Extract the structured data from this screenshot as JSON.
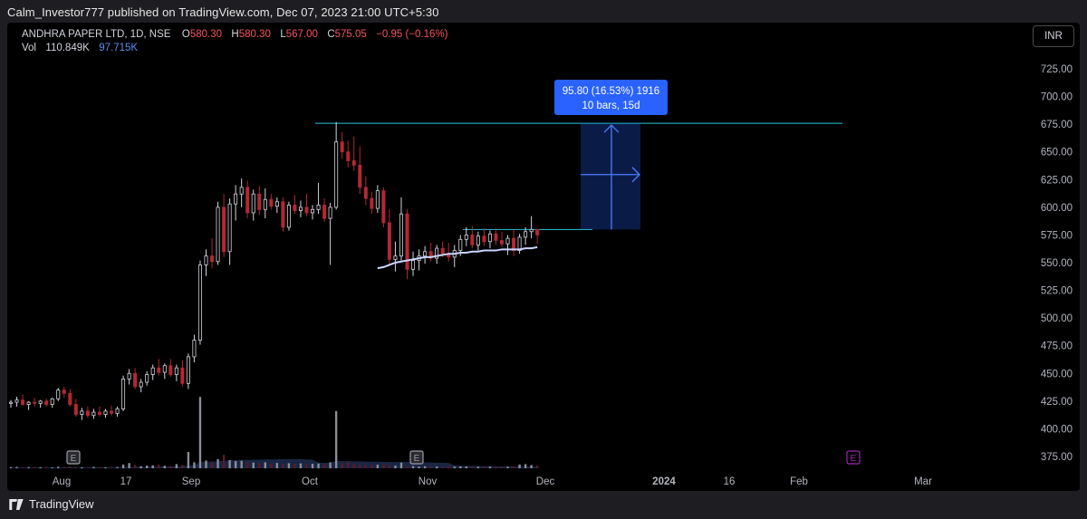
{
  "publisher": "Calm_Investor777 published on TradingView.com, Dec 07, 2023 21:00 UTC+5:30",
  "header": {
    "symbol": "ANDHRA PAPER LTD, 1D, NSE",
    "o_label": "O",
    "o_value": "580.30",
    "h_label": "H",
    "h_value": "580.30",
    "l_label": "L",
    "l_value": "567.00",
    "c_label": "C",
    "c_value": "575.05",
    "change": "−0.95 (−0.16%)",
    "vol_label": "Vol",
    "vol_value": "110.849K",
    "vol_ma": "97.715K"
  },
  "currency_button": "INR",
  "measure": {
    "line1": "95.80 (16.53%) 1916",
    "line2": "10 bars, 15d",
    "from_price": 580,
    "to_price": 675.8
  },
  "colors": {
    "up": "#d1d4dc",
    "down": "#b22833",
    "ma": "#c9d6ff",
    "hline": "#26c6da",
    "measure_bg": "#2962ff",
    "earnings": "#9c27b0",
    "volume_ma_fill": "#1c2a4a"
  },
  "footer_brand": "TradingView",
  "earnings_marker": "E",
  "chart_data": {
    "type": "candlestick",
    "ylim": [
      362,
      744
    ],
    "y_ticks": [
      "725.00",
      "700.00",
      "675.00",
      "650.00",
      "625.00",
      "600.00",
      "575.00",
      "550.00",
      "525.00",
      "500.00",
      "475.00",
      "450.00",
      "425.00",
      "400.00",
      "375.00"
    ],
    "x_ticks": [
      "Aug",
      "17",
      "Sep",
      "Oct",
      "Nov",
      "Dec",
      "2024",
      "16",
      "Feb",
      "Mar"
    ],
    "hlines": [
      675.8,
      580
    ],
    "candles": [
      [
        423,
        426,
        419,
        424
      ],
      [
        424,
        429,
        420,
        426
      ],
      [
        426,
        431,
        421,
        422
      ],
      [
        422,
        425,
        417,
        424
      ],
      [
        424,
        428,
        420,
        423
      ],
      [
        423,
        426,
        419,
        425
      ],
      [
        425,
        427,
        420,
        422
      ],
      [
        422,
        428,
        419,
        427
      ],
      [
        427,
        437,
        425,
        435
      ],
      [
        435,
        438,
        428,
        432
      ],
      [
        432,
        436,
        420,
        422
      ],
      [
        422,
        427,
        411,
        413
      ],
      [
        413,
        419,
        408,
        416
      ],
      [
        416,
        420,
        410,
        412
      ],
      [
        412,
        418,
        409,
        415
      ],
      [
        415,
        420,
        411,
        413
      ],
      [
        413,
        418,
        410,
        416
      ],
      [
        416,
        421,
        412,
        414
      ],
      [
        414,
        420,
        411,
        418
      ],
      [
        418,
        448,
        416,
        445
      ],
      [
        445,
        454,
        440,
        450
      ],
      [
        450,
        455,
        436,
        438
      ],
      [
        438,
        445,
        433,
        442
      ],
      [
        442,
        452,
        439,
        449
      ],
      [
        449,
        458,
        444,
        455
      ],
      [
        455,
        463,
        448,
        451
      ],
      [
        451,
        459,
        445,
        457
      ],
      [
        457,
        463,
        447,
        449
      ],
      [
        449,
        458,
        443,
        455
      ],
      [
        455,
        462,
        438,
        441
      ],
      [
        441,
        468,
        436,
        465
      ],
      [
        465,
        485,
        460,
        480
      ],
      [
        480,
        552,
        476,
        548
      ],
      [
        548,
        562,
        538,
        556
      ],
      [
        556,
        572,
        545,
        551
      ],
      [
        551,
        605,
        548,
        600
      ],
      [
        600,
        612,
        555,
        560
      ],
      [
        560,
        608,
        548,
        603
      ],
      [
        603,
        620,
        588,
        612
      ],
      [
        612,
        626,
        600,
        618
      ],
      [
        618,
        624,
        590,
        595
      ],
      [
        595,
        616,
        588,
        612
      ],
      [
        612,
        619,
        593,
        598
      ],
      [
        598,
        617,
        590,
        607
      ],
      [
        607,
        612,
        598,
        601
      ],
      [
        601,
        609,
        595,
        605
      ],
      [
        605,
        609,
        578,
        582
      ],
      [
        582,
        605,
        579,
        602
      ],
      [
        602,
        611,
        594,
        597
      ],
      [
        597,
        606,
        591,
        600
      ],
      [
        600,
        612,
        592,
        595
      ],
      [
        595,
        602,
        589,
        598
      ],
      [
        598,
        622,
        594,
        602
      ],
      [
        602,
        608,
        587,
        590
      ],
      [
        590,
        604,
        548,
        600
      ],
      [
        600,
        677,
        598,
        659
      ],
      [
        659,
        668,
        644,
        650
      ],
      [
        650,
        660,
        636,
        642
      ],
      [
        642,
        664,
        633,
        638
      ],
      [
        638,
        655,
        612,
        618
      ],
      [
        618,
        628,
        602,
        608
      ],
      [
        608,
        614,
        594,
        599
      ],
      [
        599,
        620,
        595,
        615
      ],
      [
        615,
        618,
        582,
        586
      ],
      [
        586,
        598,
        548,
        553
      ],
      [
        553,
        569,
        542,
        556
      ],
      [
        556,
        609,
        552,
        594
      ],
      [
        594,
        598,
        535,
        544
      ],
      [
        544,
        560,
        538,
        552
      ],
      [
        552,
        562,
        543,
        556
      ],
      [
        556,
        565,
        549,
        560
      ],
      [
        560,
        568,
        551,
        554
      ],
      [
        554,
        566,
        549,
        563
      ],
      [
        563,
        569,
        555,
        558
      ],
      [
        558,
        568,
        551,
        555
      ],
      [
        555,
        566,
        546,
        561
      ],
      [
        561,
        575,
        556,
        571
      ],
      [
        571,
        582,
        565,
        575
      ],
      [
        575,
        583,
        563,
        566
      ],
      [
        566,
        578,
        561,
        574
      ],
      [
        574,
        581,
        565,
        569
      ],
      [
        569,
        579,
        563,
        576
      ],
      [
        576,
        581,
        566,
        570
      ],
      [
        570,
        578,
        564,
        567
      ],
      [
        567,
        575,
        557,
        572
      ],
      [
        572,
        580,
        556,
        561
      ],
      [
        561,
        576,
        558,
        573
      ],
      [
        573,
        582,
        566,
        578
      ],
      [
        578,
        592,
        572,
        580
      ],
      [
        580,
        580,
        567,
        575
      ]
    ],
    "volume": [
      8,
      9,
      7,
      8,
      9,
      7,
      8,
      6,
      10,
      9,
      12,
      8,
      7,
      6,
      9,
      8,
      7,
      9,
      8,
      25,
      35,
      22,
      14,
      18,
      20,
      24,
      17,
      15,
      28,
      22,
      110,
      40,
      480,
      52,
      45,
      62,
      90,
      55,
      48,
      50,
      42,
      38,
      35,
      40,
      32,
      36,
      30,
      34,
      31,
      33,
      29,
      30,
      32,
      28,
      40,
      385,
      33,
      44,
      29,
      25,
      22,
      20,
      24,
      30,
      21,
      18,
      38,
      16,
      15,
      12,
      13,
      11,
      12,
      10,
      14,
      11,
      13,
      12,
      11,
      10,
      12,
      11,
      10,
      12,
      11,
      13,
      25,
      28,
      22,
      18
    ],
    "volume_ylim": [
      0,
      500
    ],
    "ma_values": [
      545,
      546,
      548,
      550,
      551,
      552,
      553,
      554,
      555,
      555,
      556,
      557,
      558,
      558,
      559,
      559,
      560,
      560,
      561,
      561,
      561,
      562,
      562,
      562,
      562,
      563,
      563,
      564
    ]
  }
}
